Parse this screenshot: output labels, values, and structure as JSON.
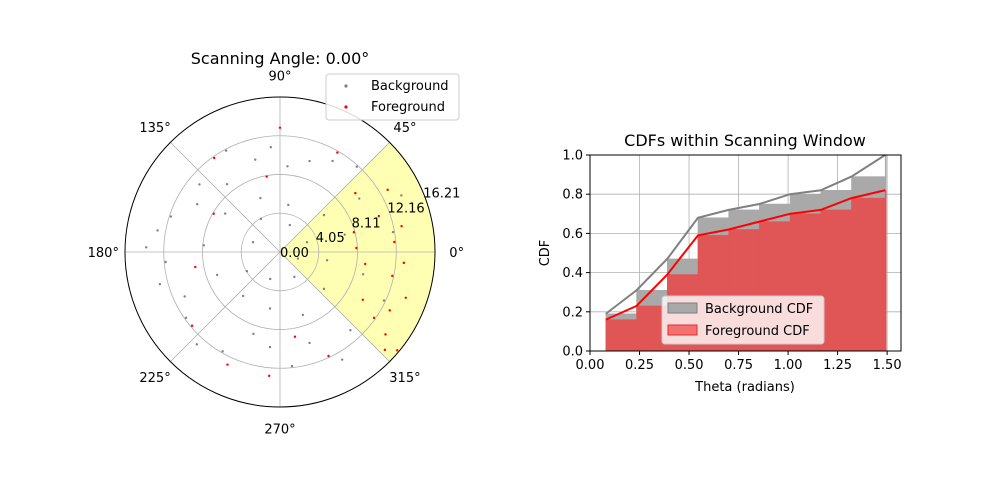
{
  "chart_data": [
    {
      "type": "scatter",
      "projection": "polar",
      "title": "Scanning Angle: 0.00°",
      "angle_ticks": [
        "0°",
        "45°",
        "90°",
        "135°",
        "180°",
        "225°",
        "270°",
        "315°"
      ],
      "radial_ticks": [
        "0.00",
        "4.05",
        "8.11",
        "12.16",
        "16.21"
      ],
      "radial_values": [
        0,
        4.05,
        8.11,
        12.16,
        16.21
      ],
      "rmax": 16.21,
      "scan_window_deg": [
        -45,
        45
      ],
      "scan_window_color": "#ffffb3",
      "legend": {
        "location": "upper-right",
        "entries": [
          "Background",
          "Foreground"
        ]
      },
      "series": [
        {
          "name": "Background",
          "color": "#808080",
          "points": [
            [
              10,
              12
            ],
            [
              25,
              14
            ],
            [
              34,
              10
            ],
            [
              48,
              12
            ],
            [
              60,
              11
            ],
            [
              72,
              10
            ],
            [
              85,
              9
            ],
            [
              95,
              11
            ],
            [
              105,
              10
            ],
            [
              118,
              12
            ],
            [
              128,
              9
            ],
            [
              140,
              11
            ],
            [
              150,
              10
            ],
            [
              162,
              12
            ],
            [
              170,
              13
            ],
            [
              178,
              14
            ],
            [
              185,
              12
            ],
            [
              195,
              13
            ],
            [
              205,
              11
            ],
            [
              215,
              12
            ],
            [
              228,
              13
            ],
            [
              240,
              12
            ],
            [
              252,
              9
            ],
            [
              264,
              10
            ],
            [
              276,
              12
            ],
            [
              288,
              10
            ],
            [
              300,
              13
            ],
            [
              312,
              11
            ],
            [
              322,
              14
            ],
            [
              335,
              12
            ],
            [
              345,
              9
            ],
            [
              355,
              13
            ],
            [
              15,
              7
            ],
            [
              40,
              6
            ],
            [
              80,
              5
            ],
            [
              110,
              6
            ],
            [
              145,
              7
            ],
            [
              175,
              8
            ],
            [
              200,
              7
            ],
            [
              230,
              6
            ],
            [
              260,
              6
            ],
            [
              290,
              7
            ],
            [
              320,
              6
            ],
            [
              350,
              5
            ],
            [
              20,
              3
            ],
            [
              70,
              3
            ],
            [
              120,
              4
            ],
            [
              160,
              3
            ],
            [
              210,
              4
            ],
            [
              250,
              3
            ],
            [
              300,
              3
            ],
            [
              340,
              2
            ]
          ]
        },
        {
          "name": "Foreground",
          "color": "#ff0000",
          "points": [
            [
              5,
              12
            ],
            [
              12,
              13
            ],
            [
              20,
              11
            ],
            [
              30,
              13
            ],
            [
              38,
              10
            ],
            [
              -5,
              13
            ],
            [
              -12,
              12
            ],
            [
              -20,
              14
            ],
            [
              -28,
              13
            ],
            [
              -35,
              12
            ],
            [
              -40,
              16
            ],
            [
              -43,
              15
            ],
            [
              -38,
              14
            ],
            [
              -30,
              10
            ],
            [
              -8,
              9
            ],
            [
              3,
              8
            ],
            [
              15,
              8
            ],
            [
              60,
              12
            ],
            [
              90,
              13
            ],
            [
              100,
              8
            ],
            [
              125,
              12
            ],
            [
              150,
              8
            ],
            [
              190,
              9
            ],
            [
              220,
              12
            ],
            [
              245,
              13
            ],
            [
              265,
              13
            ],
            [
              280,
              9
            ],
            [
              295,
              12
            ]
          ]
        }
      ]
    },
    {
      "type": "line",
      "title": "CDFs within Scanning Window",
      "xlabel": "Theta (radians)",
      "ylabel": "CDF",
      "xlim": [
        0.0,
        1.57
      ],
      "ylim": [
        0.0,
        1.0
      ],
      "xticks": [
        "0.00",
        "0.25",
        "0.50",
        "0.75",
        "1.00",
        "1.25",
        "1.50"
      ],
      "xtick_values": [
        0.0,
        0.25,
        0.5,
        0.75,
        1.0,
        1.25,
        1.5
      ],
      "yticks": [
        "0.0",
        "0.2",
        "0.4",
        "0.6",
        "0.8",
        "1.0"
      ],
      "ytick_values": [
        0.0,
        0.2,
        0.4,
        0.6,
        0.8,
        1.0
      ],
      "grid": true,
      "legend": {
        "location": "lower-center",
        "entries": [
          "Background CDF",
          "Foreground CDF"
        ]
      },
      "bin_edges": [
        0.08,
        0.235,
        0.39,
        0.545,
        0.7,
        0.855,
        1.01,
        1.165,
        1.32,
        1.49
      ],
      "series": [
        {
          "name": "Background CDF",
          "color": "#808080",
          "hist_values": [
            0.19,
            0.31,
            0.47,
            0.68,
            0.72,
            0.75,
            0.8,
            0.82,
            0.89,
            1.0
          ],
          "x": [
            0.08,
            0.235,
            0.39,
            0.545,
            0.7,
            0.855,
            1.01,
            1.165,
            1.32,
            1.49
          ],
          "values": [
            0.19,
            0.31,
            0.47,
            0.68,
            0.72,
            0.75,
            0.8,
            0.82,
            0.89,
            1.0
          ]
        },
        {
          "name": "Foreground CDF",
          "color": "#ff0000",
          "hist_values": [
            0.16,
            0.23,
            0.39,
            0.59,
            0.62,
            0.66,
            0.7,
            0.72,
            0.78,
            0.82
          ],
          "x": [
            0.08,
            0.235,
            0.39,
            0.545,
            0.7,
            0.855,
            1.01,
            1.165,
            1.32,
            1.49
          ],
          "values": [
            0.16,
            0.23,
            0.39,
            0.59,
            0.62,
            0.66,
            0.7,
            0.72,
            0.78,
            0.82
          ]
        }
      ]
    }
  ]
}
